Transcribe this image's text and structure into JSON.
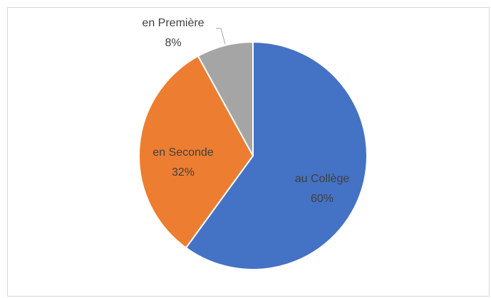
{
  "chart_data": {
    "type": "pie",
    "categories": [
      "au Collège",
      "en Seconde",
      "en Première"
    ],
    "values": [
      60,
      32,
      8
    ],
    "value_labels": [
      "60%",
      "32%",
      "8%"
    ],
    "colors": [
      "#4472c4",
      "#ed7d31",
      "#a5a5a5"
    ]
  }
}
